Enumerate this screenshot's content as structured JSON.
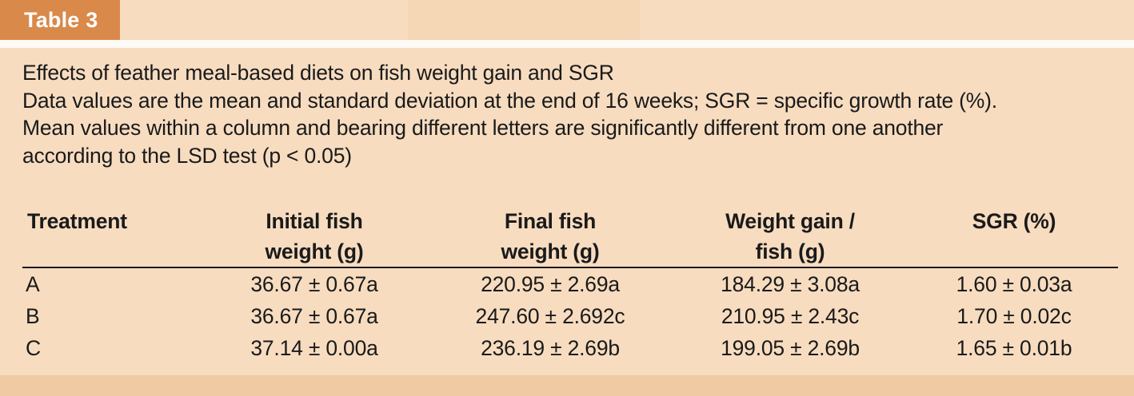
{
  "label": "Table 3",
  "caption_lines": [
    "Effects of feather meal-based diets on fish weight gain and SGR",
    "Data values are the mean and standard deviation at the end of 16 weeks; SGR = specific growth rate (%).",
    "Mean values within a column and bearing different letters are significantly different from one another",
    "according to the LSD test (p < 0.05)"
  ],
  "headers": [
    [
      "Treatment"
    ],
    [
      "Initial fish",
      "weight (g)"
    ],
    [
      "Final fish",
      "weight (g)"
    ],
    [
      "Weight gain /",
      "fish (g)"
    ],
    [
      "SGR (%)"
    ]
  ],
  "rows": [
    [
      "A",
      "36.67 ± 0.67a",
      "220.95 ± 2.69a",
      "184.29 ± 3.08a",
      "1.60 ± 0.03a"
    ],
    [
      "B",
      "36.67 ± 0.67a",
      "247.60 ± 2.692c",
      "210.95 ± 2.43c",
      "1.70 ± 0.02c"
    ],
    [
      "C",
      "37.14 ± 0.00a",
      "236.19 ± 2.69b",
      "199.05 ± 2.69b",
      "1.65 ± 0.01b"
    ]
  ],
  "colors": {
    "background": "#f7dcc0",
    "label_tab": "#d9894a",
    "label_text": "#ffffff",
    "text": "#1a1a1a"
  }
}
